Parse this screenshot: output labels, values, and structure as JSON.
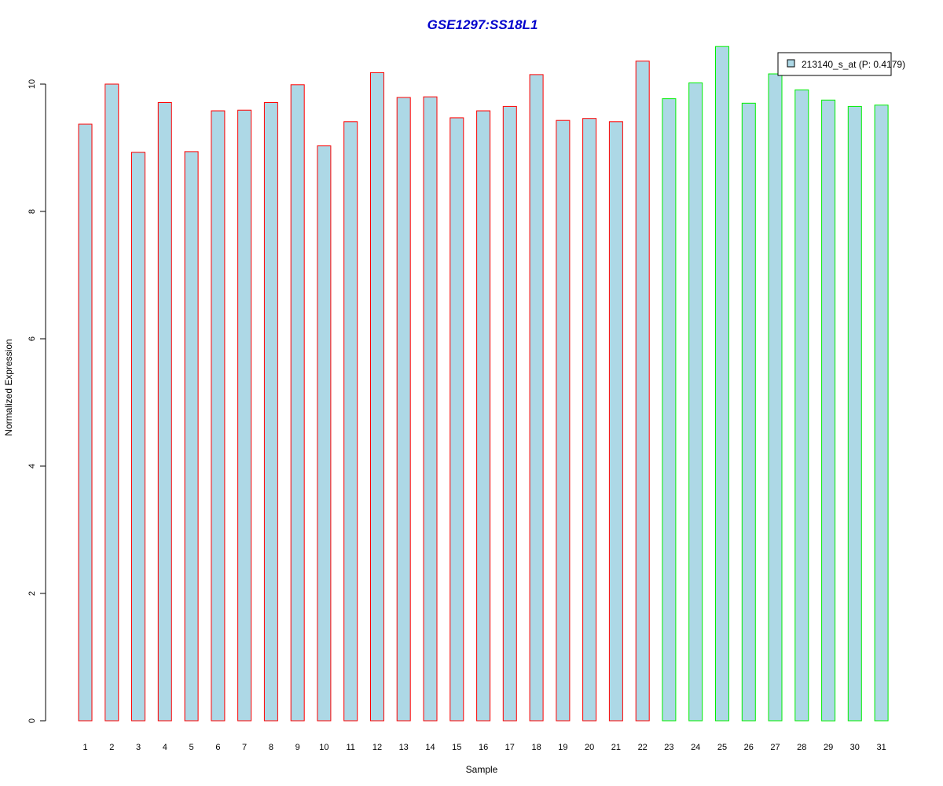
{
  "chart_data": {
    "type": "bar",
    "title": "GSE1297:SS18L1",
    "xlabel": "Sample",
    "ylabel": "Normalized Expression",
    "categories": [
      "1",
      "2",
      "3",
      "4",
      "5",
      "6",
      "7",
      "8",
      "9",
      "10",
      "11",
      "12",
      "13",
      "14",
      "15",
      "16",
      "17",
      "18",
      "19",
      "20",
      "21",
      "22",
      "23",
      "24",
      "25",
      "26",
      "27",
      "28",
      "29",
      "30",
      "31"
    ],
    "values": [
      9.37,
      10.0,
      8.93,
      9.71,
      8.94,
      9.58,
      9.59,
      9.71,
      9.99,
      9.03,
      9.41,
      10.18,
      9.79,
      9.8,
      9.47,
      9.58,
      9.65,
      10.15,
      9.43,
      9.46,
      9.41,
      10.36,
      9.77,
      10.02,
      10.59,
      9.7,
      10.16,
      9.91,
      9.75,
      9.65,
      9.67
    ],
    "groups": [
      "red",
      "red",
      "red",
      "red",
      "red",
      "red",
      "red",
      "red",
      "red",
      "red",
      "red",
      "red",
      "red",
      "red",
      "red",
      "red",
      "red",
      "red",
      "red",
      "red",
      "red",
      "red",
      "green",
      "green",
      "green",
      "green",
      "green",
      "green",
      "green",
      "green",
      "green"
    ],
    "ylim": [
      0,
      10.6
    ],
    "yticks": [
      0,
      2,
      4,
      6,
      8,
      10
    ],
    "grid": false,
    "legend": {
      "placement": "top-right",
      "label": "213140_s_at (P: 0.4179)"
    },
    "colors": {
      "fill": "#add8e6",
      "border_group_1": "#ff0000",
      "border_group_2": "#00ee00",
      "title": "#0000cc",
      "axis": "#000000"
    }
  }
}
